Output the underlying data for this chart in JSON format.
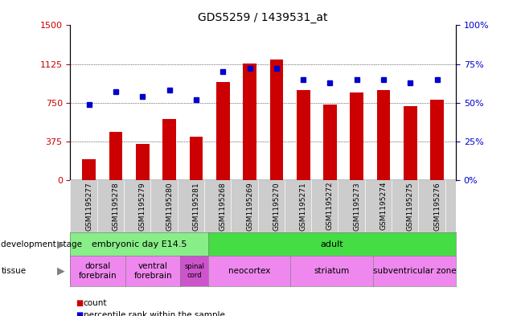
{
  "title": "GDS5259 / 1439531_at",
  "samples": [
    "GSM1195277",
    "GSM1195278",
    "GSM1195279",
    "GSM1195280",
    "GSM1195281",
    "GSM1195268",
    "GSM1195269",
    "GSM1195270",
    "GSM1195271",
    "GSM1195272",
    "GSM1195273",
    "GSM1195274",
    "GSM1195275",
    "GSM1195276"
  ],
  "counts": [
    200,
    470,
    350,
    590,
    420,
    950,
    1130,
    1170,
    870,
    730,
    850,
    870,
    720,
    780
  ],
  "percentiles": [
    49,
    57,
    54,
    58,
    52,
    70,
    72,
    72,
    65,
    63,
    65,
    65,
    63,
    65
  ],
  "bar_color": "#cc0000",
  "dot_color": "#0000cc",
  "ylim_left": [
    0,
    1500
  ],
  "ylim_right": [
    0,
    100
  ],
  "yticks_left": [
    0,
    375,
    750,
    1125,
    1500
  ],
  "yticks_right": [
    0,
    25,
    50,
    75,
    100
  ],
  "grid_lines": [
    375,
    750,
    1125
  ],
  "development_stage_groups": [
    {
      "label": "embryonic day E14.5",
      "start": 0,
      "end": 4,
      "color": "#88ee88"
    },
    {
      "label": "adult",
      "start": 5,
      "end": 13,
      "color": "#44dd44"
    }
  ],
  "tissue_groups": [
    {
      "label": "dorsal\nforebrain",
      "start": 0,
      "end": 1,
      "color": "#ee88ee"
    },
    {
      "label": "ventral\nforebrain",
      "start": 2,
      "end": 3,
      "color": "#ee88ee"
    },
    {
      "label": "spinal\ncord",
      "start": 4,
      "end": 4,
      "color": "#cc55cc"
    },
    {
      "label": "neocortex",
      "start": 5,
      "end": 7,
      "color": "#ee88ee"
    },
    {
      "label": "striatum",
      "start": 8,
      "end": 10,
      "color": "#ee88ee"
    },
    {
      "label": "subventricular zone",
      "start": 11,
      "end": 13,
      "color": "#ee88ee"
    }
  ],
  "dev_stage_label": "development stage",
  "tissue_label": "tissue",
  "legend_items": [
    {
      "label": "count",
      "color": "#cc0000"
    },
    {
      "label": "percentile rank within the sample",
      "color": "#0000cc"
    }
  ],
  "tick_label_color_left": "#cc0000",
  "tick_label_color_right": "#0000cc",
  "title_fontsize": 10,
  "tick_fontsize": 8,
  "grey_bg": "#cccccc"
}
